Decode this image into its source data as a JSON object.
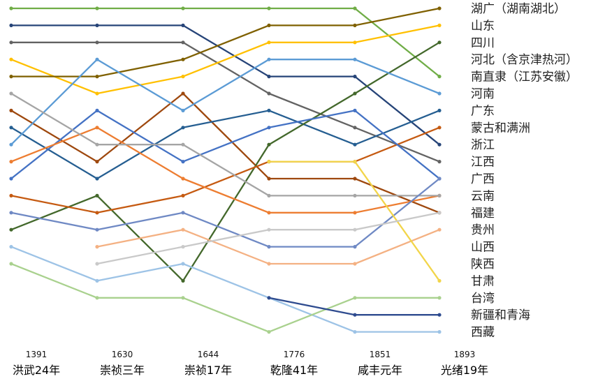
{
  "chart_data": {
    "type": "line",
    "title": "",
    "xlabel": "",
    "ylabel": "",
    "x": [
      "1391",
      "1630",
      "1644",
      "1776",
      "1851",
      "1893"
    ],
    "x_era": [
      "洪武24年",
      "崇祯三年",
      "崇祯17年",
      "乾隆41年",
      "咸丰元年",
      "光绪19年"
    ],
    "y_scale": "rank (1 = top)",
    "grid": false,
    "legend_position": "right",
    "legend": [
      "湖广（湖南湖北）",
      "山东",
      "四川",
      "河北（含京津热河）",
      "南直隶（江苏安徽）",
      "河南",
      "广东",
      "蒙古和满洲",
      "浙江",
      "江西",
      "广西",
      "云南",
      "福建",
      "贵州",
      "山西",
      "陕西",
      "甘肃",
      "台湾",
      "新疆和青海",
      "西藏"
    ],
    "series": [
      {
        "color": "#70ad47",
        "values": [
          1,
          1,
          1,
          1,
          1,
          5
        ]
      },
      {
        "color": "#264478",
        "values": [
          2,
          2,
          2,
          5,
          5,
          9
        ]
      },
      {
        "color": "#636363",
        "values": [
          3,
          3,
          3,
          6,
          8,
          10
        ]
      },
      {
        "color": "#ffc000",
        "values": [
          4,
          6,
          5,
          3,
          3,
          2
        ]
      },
      {
        "color": "#7f6000",
        "values": [
          5,
          5,
          4,
          2,
          2,
          1
        ]
      },
      {
        "color": "#9e480e",
        "values": [
          7,
          10,
          6,
          11,
          11,
          13
        ]
      },
      {
        "color": "#255e91",
        "values": [
          8,
          11,
          8,
          7,
          9,
          7
        ]
      },
      {
        "color": "#43682b",
        "values": [
          14,
          12,
          17,
          9,
          6,
          3
        ]
      },
      {
        "color": "#5b9bd5",
        "values": [
          9,
          4,
          7,
          4,
          4,
          6
        ]
      },
      {
        "color": "#c55a11",
        "values": [
          12,
          13,
          12,
          10,
          10,
          8
        ]
      },
      {
        "color": "#4472c4",
        "values": [
          11,
          7,
          10,
          8,
          7,
          11
        ]
      },
      {
        "color": "#ed7d31",
        "values": [
          10,
          8,
          11,
          13,
          13,
          12
        ]
      },
      {
        "color": "#a5a5a5",
        "values": [
          6,
          9,
          9,
          12,
          12,
          12
        ]
      },
      {
        "color": "#6f89c4",
        "values": [
          13,
          14,
          13,
          15,
          15,
          11
        ]
      },
      {
        "color": "#9dc3e6",
        "values": [
          15,
          17,
          16,
          18,
          20,
          20
        ]
      },
      {
        "color": "#f4b183",
        "values": [
          null,
          15,
          14,
          16,
          16,
          14
        ]
      },
      {
        "color": "#f2d54a",
        "values": [
          null,
          null,
          null,
          10,
          10,
          17
        ]
      },
      {
        "color": "#a9d18e",
        "values": [
          16,
          18,
          18,
          20,
          18,
          18
        ]
      },
      {
        "color": "#2e4b8f",
        "values": [
          null,
          null,
          null,
          18,
          19,
          19
        ]
      },
      {
        "color": "#c9c9c9",
        "values": [
          null,
          16,
          15,
          14,
          14,
          13
        ]
      }
    ]
  }
}
